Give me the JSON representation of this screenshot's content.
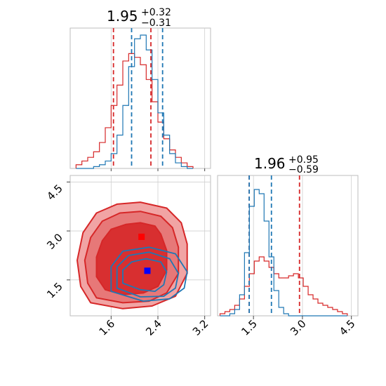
{
  "colors": {
    "red": "#d62728",
    "blue": "#1f77b4",
    "red_fill_inner": "#d62728",
    "red_fill_outer": "#ef9a9a",
    "grid": "#cfcfcf"
  },
  "titles": {
    "x": {
      "median": "1.95",
      "plus": "+0.32",
      "minus": "−0.31"
    },
    "y": {
      "median": "1.96",
      "plus": "+0.95",
      "minus": "−0.59"
    }
  },
  "chart_data": {
    "type": "corner",
    "x_axis": {
      "range": [
        0.9,
        3.3
      ],
      "ticks": [
        "1.6",
        "2.4",
        "3.2"
      ],
      "tick_values": [
        1.6,
        2.4,
        3.2
      ]
    },
    "y_axis": {
      "range": [
        0.4,
        4.7
      ],
      "ticks": [
        "1.5",
        "3.0",
        "4.5"
      ],
      "tick_values": [
        1.5,
        3.0,
        4.5
      ]
    },
    "x_marginal": {
      "red_quantiles": [
        1.64,
        2.28
      ],
      "blue_quantiles": [
        1.95,
        2.48
      ],
      "bins": [
        1.05,
        1.15,
        1.25,
        1.35,
        1.45,
        1.55,
        1.65,
        1.75,
        1.85,
        1.95,
        2.05,
        2.15,
        2.25,
        2.35,
        2.45,
        2.55,
        2.65,
        2.75,
        2.85,
        2.95
      ],
      "red_heights": [
        2,
        4,
        6,
        9,
        14,
        22,
        34,
        45,
        58,
        62,
        60,
        56,
        48,
        36,
        25,
        16,
        10,
        6,
        3,
        1
      ],
      "blue_heights": [
        0,
        0,
        0,
        1,
        2,
        4,
        8,
        18,
        34,
        55,
        70,
        72,
        64,
        48,
        30,
        18,
        8,
        3,
        1,
        0
      ]
    },
    "y_marginal": {
      "red_quantiles": [
        1.37,
        2.91
      ],
      "blue_quantiles": [
        1.37,
        2.05
      ],
      "bins": [
        0.55,
        0.7,
        0.85,
        1.0,
        1.15,
        1.3,
        1.45,
        1.6,
        1.75,
        1.9,
        2.05,
        2.2,
        2.35,
        2.5,
        2.65,
        2.8,
        2.95,
        3.1,
        3.25,
        3.4,
        3.55,
        3.7,
        3.85,
        4.0,
        4.15,
        4.3
      ],
      "red_heights": [
        1,
        2,
        3,
        5,
        8,
        14,
        20,
        26,
        28,
        26,
        23,
        20,
        18,
        18,
        19,
        20,
        18,
        14,
        10,
        8,
        6,
        5,
        4,
        3,
        2,
        1
      ],
      "blue_heights": [
        0,
        0,
        1,
        3,
        10,
        30,
        52,
        60,
        58,
        45,
        28,
        12,
        4,
        1,
        0,
        0,
        0,
        0,
        0,
        0,
        0,
        0,
        0,
        0,
        0,
        0
      ]
    },
    "joint": {
      "red_marker": [
        2.12,
        2.82
      ],
      "blue_marker": [
        2.22,
        1.78
      ],
      "red_contours": [
        [
          [
            1.5,
            1.2
          ],
          [
            1.8,
            1.05
          ],
          [
            2.15,
            1.1
          ],
          [
            2.4,
            1.3
          ],
          [
            2.55,
            1.8
          ],
          [
            2.55,
            2.4
          ],
          [
            2.45,
            2.9
          ],
          [
            2.35,
            3.15
          ],
          [
            2.1,
            3.25
          ],
          [
            1.85,
            3.2
          ],
          [
            1.6,
            3.05
          ],
          [
            1.45,
            2.7
          ],
          [
            1.35,
            2.2
          ],
          [
            1.35,
            1.6
          ]
        ],
        [
          [
            1.35,
            0.95
          ],
          [
            1.8,
            0.8
          ],
          [
            2.25,
            0.85
          ],
          [
            2.55,
            1.1
          ],
          [
            2.75,
            1.7
          ],
          [
            2.75,
            2.5
          ],
          [
            2.65,
            3.1
          ],
          [
            2.45,
            3.45
          ],
          [
            2.1,
            3.6
          ],
          [
            1.75,
            3.55
          ],
          [
            1.45,
            3.3
          ],
          [
            1.25,
            2.8
          ],
          [
            1.15,
            2.1
          ],
          [
            1.2,
            1.4
          ]
        ],
        [
          [
            1.25,
            0.8
          ],
          [
            1.8,
            0.62
          ],
          [
            2.3,
            0.7
          ],
          [
            2.7,
            1.0
          ],
          [
            2.9,
            1.7
          ],
          [
            2.9,
            2.6
          ],
          [
            2.8,
            3.25
          ],
          [
            2.55,
            3.7
          ],
          [
            2.1,
            3.88
          ],
          [
            1.7,
            3.82
          ],
          [
            1.35,
            3.55
          ],
          [
            1.12,
            2.95
          ],
          [
            1.02,
            2.1
          ],
          [
            1.08,
            1.3
          ]
        ]
      ],
      "blue_contours": [
        [
          [
            1.8,
            1.4
          ],
          [
            2.1,
            1.2
          ],
          [
            2.35,
            1.15
          ],
          [
            2.5,
            1.35
          ],
          [
            2.55,
            1.75
          ],
          [
            2.45,
            2.05
          ],
          [
            2.2,
            2.15
          ],
          [
            1.95,
            2.05
          ],
          [
            1.8,
            1.8
          ]
        ],
        [
          [
            1.7,
            1.25
          ],
          [
            2.1,
            0.98
          ],
          [
            2.5,
            1.0
          ],
          [
            2.7,
            1.25
          ],
          [
            2.75,
            1.7
          ],
          [
            2.6,
            2.15
          ],
          [
            2.25,
            2.35
          ],
          [
            1.9,
            2.25
          ],
          [
            1.7,
            1.9
          ]
        ],
        [
          [
            1.6,
            1.15
          ],
          [
            2.15,
            0.85
          ],
          [
            2.6,
            0.92
          ],
          [
            2.85,
            1.25
          ],
          [
            2.9,
            1.75
          ],
          [
            2.7,
            2.3
          ],
          [
            2.25,
            2.5
          ],
          [
            1.8,
            2.38
          ],
          [
            1.6,
            1.9
          ]
        ]
      ]
    }
  }
}
